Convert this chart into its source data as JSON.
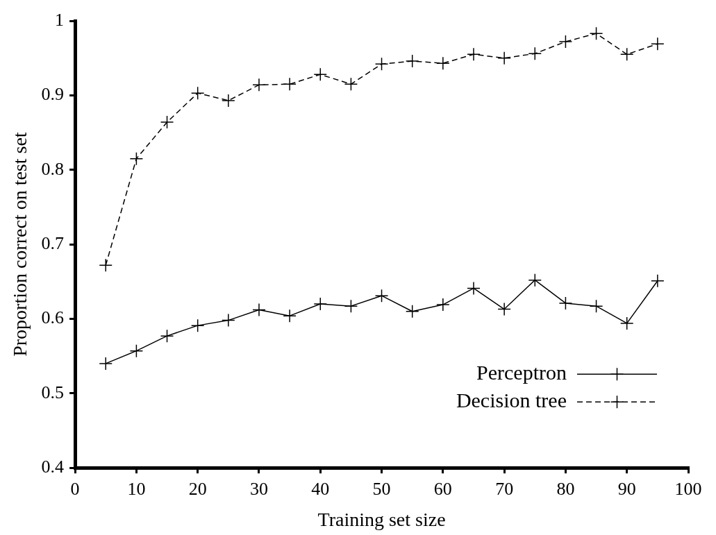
{
  "chart_data": {
    "type": "line",
    "xlabel": "Training set size",
    "ylabel": "Proportion correct on test set",
    "x": [
      5,
      10,
      15,
      20,
      25,
      30,
      35,
      40,
      45,
      50,
      55,
      60,
      65,
      70,
      75,
      80,
      85,
      90,
      95
    ],
    "series": [
      {
        "name": "Perceptron",
        "color": "#000000",
        "line_style": "solid",
        "marker": "cross",
        "values": [
          0.54,
          0.557,
          0.577,
          0.591,
          0.598,
          0.612,
          0.604,
          0.62,
          0.617,
          0.631,
          0.61,
          0.619,
          0.641,
          0.613,
          0.652,
          0.621,
          0.617,
          0.594,
          0.651
        ]
      },
      {
        "name": "Decision tree",
        "color": "#000000",
        "line_style": "dashed",
        "marker": "cross",
        "values": [
          0.672,
          0.815,
          0.864,
          0.903,
          0.893,
          0.914,
          0.915,
          0.928,
          0.915,
          0.942,
          0.946,
          0.943,
          0.955,
          0.95,
          0.956,
          0.972,
          0.983,
          0.955,
          0.969
        ]
      }
    ],
    "xlim": [
      0,
      100
    ],
    "xticks": [
      0,
      10,
      20,
      30,
      40,
      50,
      60,
      70,
      80,
      90,
      100
    ],
    "ylim": [
      0.4,
      1
    ],
    "yticks": [
      0.4,
      0.5,
      0.6,
      0.7,
      0.8,
      0.9,
      1
    ],
    "grid": false,
    "legend": "bottom right"
  }
}
